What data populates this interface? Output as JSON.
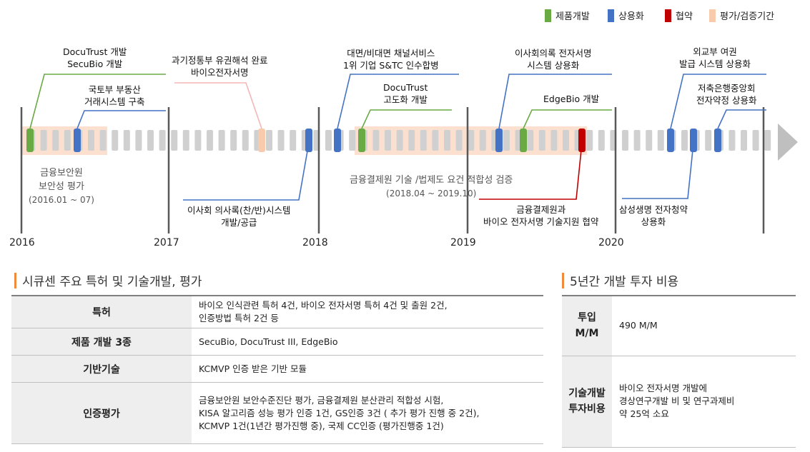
{
  "legend": [
    {
      "label": "제품개발",
      "color": "#6aaa44"
    },
    {
      "label": "상용화",
      "color": "#4472c4"
    },
    {
      "label": "협약",
      "color": "#c00000"
    },
    {
      "label": "평가/검증기간",
      "color": "#f8cbad"
    }
  ],
  "years": [
    "2016",
    "2017",
    "2018",
    "2019",
    "2020"
  ],
  "annotations": [
    {
      "lines": [
        "DocuTrust 개발",
        "SecuBio 개발"
      ]
    },
    {
      "lines": [
        "국토부 부동산",
        "거래시스템  구축"
      ]
    },
    {
      "lines": [
        "과기정통부 유권해석 완료",
        "바이오전자서명"
      ]
    },
    {
      "lines": [
        "이사회 의사록(찬/반)시스템",
        "개발/공급"
      ]
    },
    {
      "lines": [
        "대면/비대면 채널서비스",
        "1위 기업 S&TC 인수합병"
      ]
    },
    {
      "lines": [
        "DocuTrust",
        "고도화 개발"
      ]
    },
    {
      "lines": [
        "이사회의록 전자서명",
        "시스템 상용화"
      ]
    },
    {
      "lines": [
        "EdgeBio 개발"
      ]
    },
    {
      "lines": [
        "금융결제원과",
        "바이오 전자서명 기술지원 협약"
      ]
    },
    {
      "lines": [
        "외교부 여권",
        "발급 시스템 상용화"
      ]
    },
    {
      "lines": [
        "저축은행중앙회",
        "전자약정 상용화"
      ]
    },
    {
      "lines": [
        "삼성생명 전자청약",
        "상용화"
      ]
    }
  ],
  "periods": [
    {
      "lines": [
        "금융보안원",
        "보안성 평가"
      ],
      "sub": "(2016.01 ~ 07)"
    },
    {
      "lines": [
        "금융결제원 기술 /법제도 요건 적합성 검증"
      ],
      "sub": "(2018.04 ~ 2019.10)"
    }
  ],
  "left_section": {
    "title": "시큐센 주요 특허 및 기술개발, 평가",
    "rows": [
      {
        "key": "특허",
        "value": [
          "바이오 인식관련 특허 4건, 바이오 전자서명 특허 4건 및 출원 2건,",
          "인증방법 특허 2건  등"
        ]
      },
      {
        "key": "제품 개발 3종",
        "value": [
          "SecuBio, DocuTrust III, EdgeBio"
        ]
      },
      {
        "key": "기반기술",
        "value": [
          "KCMVP 인증 받은 기반 모듈"
        ]
      },
      {
        "key": "인증평가",
        "value": [
          "금융보안원 보안수준진단 평가, 금융결제원 분산관리 적합성 시험,",
          "KISA 알고리즘 성능 평가 인증 1건, GS인증 3건 ( 추가 평가 진행 중 2건),",
          "KCMVP 1건(1년간 평가진행 중), 국제 CC인증 (평가진행중 1건)"
        ]
      }
    ]
  },
  "right_section": {
    "title": "5년간 개발 투자 비용",
    "rows": [
      {
        "key": [
          "투입",
          "M/M"
        ],
        "value": [
          "490 M/M"
        ]
      },
      {
        "key": [
          "기술개발",
          "투자비용"
        ],
        "value": [
          "바이오 전자서명 개발에",
          "경상연구개발 비 및 연구과제비",
          "약 25억  소요"
        ]
      }
    ]
  }
}
